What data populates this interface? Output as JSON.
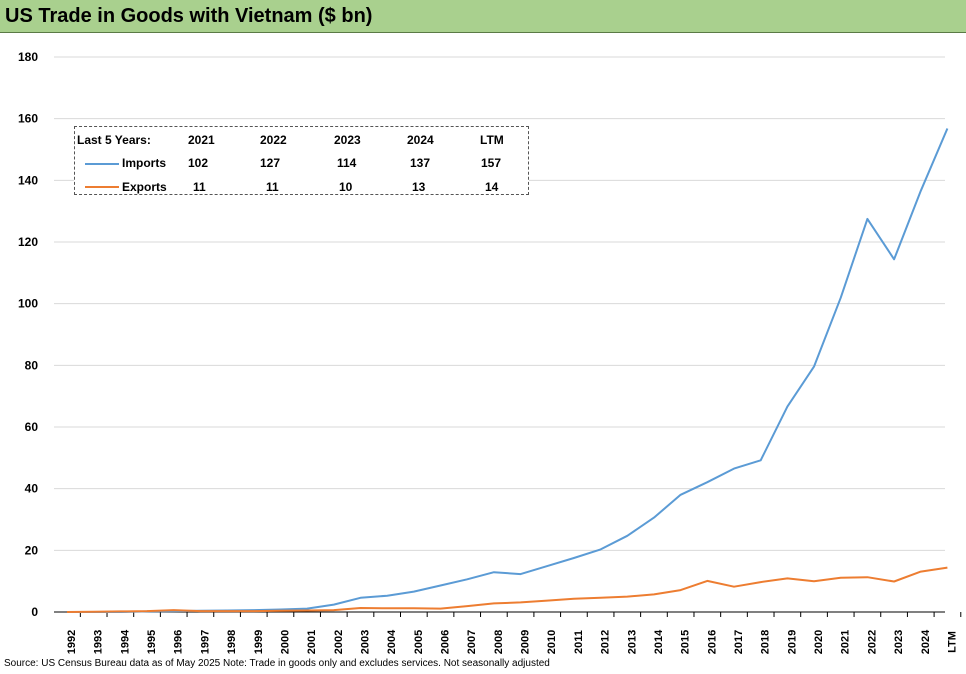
{
  "title": "US Trade in Goods with Vietnam ($ bn)",
  "source_note": "Source: US Census Bureau data as of May 2025 Note: Trade in goods only and excludes services. Not seasonally adjusted",
  "legend_table": {
    "header_label": "Last 5 Years:",
    "columns": [
      "2021",
      "2022",
      "2023",
      "2024",
      "LTM"
    ],
    "rows": [
      {
        "label": "Imports",
        "color": "#5b9bd5",
        "values": [
          "102",
          "127",
          "114",
          "137",
          "157"
        ]
      },
      {
        "label": "Exports",
        "color": "#ed7d31",
        "values": [
          "11",
          "11",
          "10",
          "13",
          "14"
        ]
      }
    ]
  },
  "chart_data": {
    "type": "line",
    "title": "US Trade in Goods with Vietnam ($ bn)",
    "xlabel": "",
    "ylabel": "",
    "ylim": [
      0,
      180
    ],
    "yticks": [
      0,
      20,
      40,
      60,
      80,
      100,
      120,
      140,
      160,
      180
    ],
    "grid": true,
    "legend_placement": "top-left",
    "categories": [
      "1992",
      "1993",
      "1994",
      "1995",
      "1996",
      "1997",
      "1998",
      "1999",
      "2000",
      "2001",
      "2002",
      "2003",
      "2004",
      "2005",
      "2006",
      "2007",
      "2008",
      "2009",
      "2010",
      "2011",
      "2012",
      "2013",
      "2014",
      "2015",
      "2016",
      "2017",
      "2018",
      "2019",
      "2020",
      "2021",
      "2022",
      "2023",
      "2024",
      "LTM"
    ],
    "series": [
      {
        "name": "Imports",
        "color": "#5b9bd5",
        "values": [
          0,
          0,
          0,
          0.2,
          0.3,
          0.4,
          0.5,
          0.6,
          0.8,
          1.1,
          2.4,
          4.6,
          5.3,
          6.6,
          8.6,
          10.6,
          12.9,
          12.3,
          14.9,
          17.5,
          20.3,
          24.7,
          30.6,
          38.0,
          42.1,
          46.5,
          49.2,
          66.6,
          79.6,
          101.9,
          127.5,
          114.4,
          136.6,
          156.8
        ]
      },
      {
        "name": "Exports",
        "color": "#ed7d31",
        "values": [
          0,
          0.1,
          0.2,
          0.3,
          0.6,
          0.3,
          0.3,
          0.3,
          0.4,
          0.5,
          0.6,
          1.3,
          1.2,
          1.2,
          1.1,
          1.9,
          2.8,
          3.1,
          3.7,
          4.3,
          4.6,
          5.0,
          5.7,
          7.1,
          10.1,
          8.2,
          9.7,
          10.9,
          10.0,
          11.1,
          11.3,
          9.9,
          13.1,
          14.4
        ]
      }
    ]
  }
}
